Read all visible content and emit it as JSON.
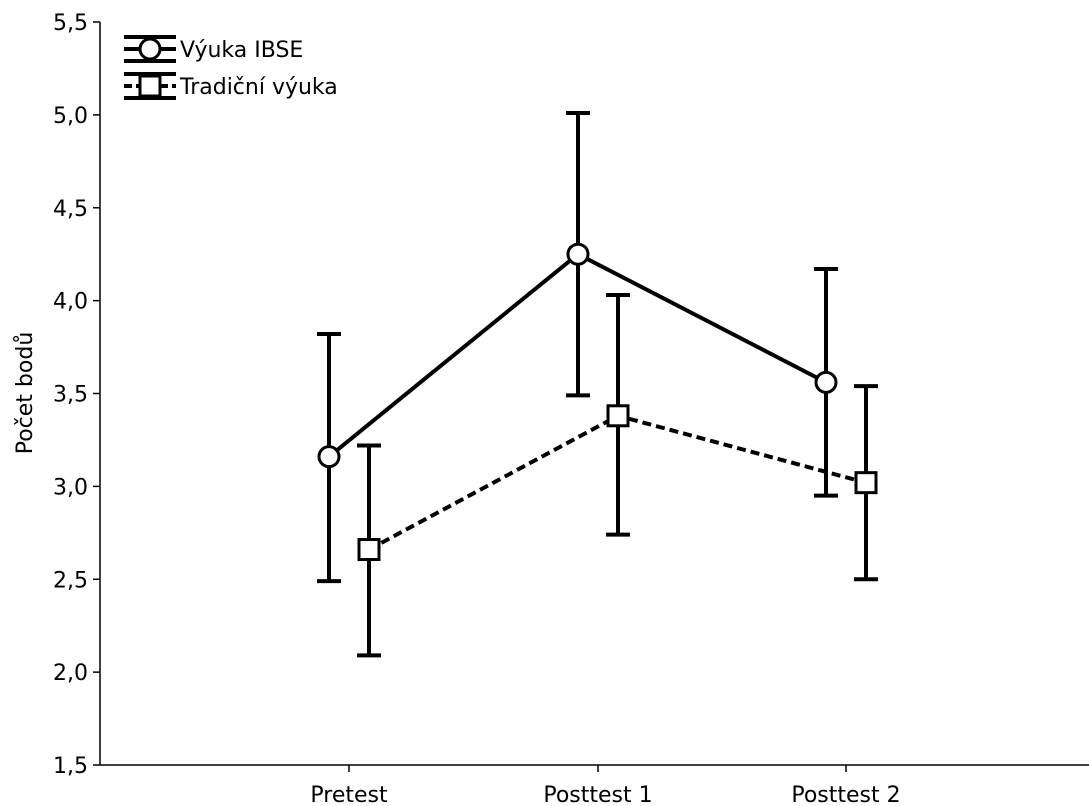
{
  "chart_data": {
    "type": "line",
    "title": "",
    "xlabel": "",
    "ylabel": "Počet bodů",
    "categories": [
      "Pretest",
      "Posttest 1",
      "Posttest 2"
    ],
    "yticks": [
      "1,5",
      "2,0",
      "2,5",
      "3,0",
      "3,5",
      "4,0",
      "4,5",
      "5,0",
      "5,5"
    ],
    "ylim": [
      1.5,
      5.5
    ],
    "grid": false,
    "legend_position": "top-left",
    "series": [
      {
        "name": "Výuka IBSE",
        "marker": "circle",
        "line_style": "solid",
        "values": [
          3.16,
          4.25,
          3.56
        ],
        "err_low": [
          2.49,
          3.49,
          2.95
        ],
        "err_high": [
          3.82,
          5.01,
          4.17
        ]
      },
      {
        "name": "Tradiční výuka",
        "marker": "square",
        "line_style": "dashed",
        "values": [
          2.66,
          3.38,
          3.02
        ],
        "err_low": [
          2.09,
          2.74,
          2.5
        ],
        "err_high": [
          3.22,
          4.03,
          3.54
        ]
      }
    ]
  }
}
